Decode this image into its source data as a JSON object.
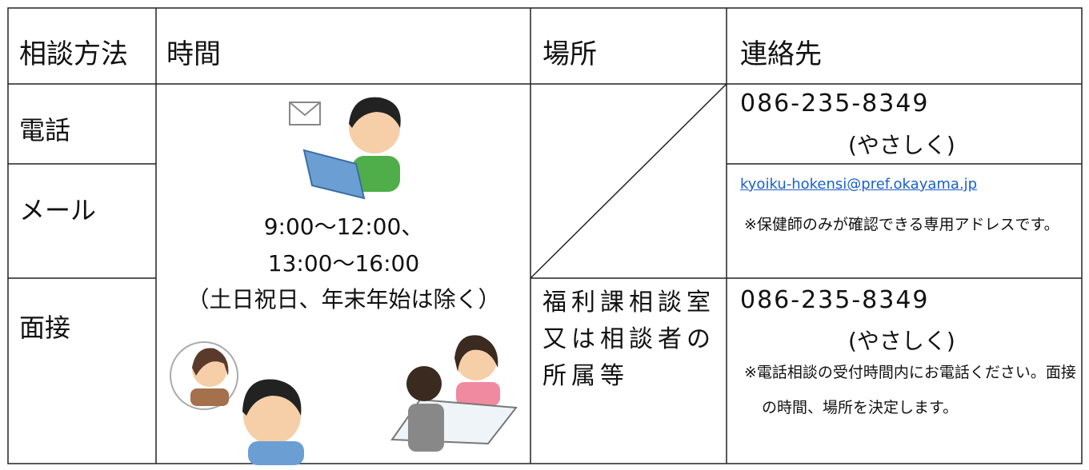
{
  "table": {
    "headers": [
      "相談方法",
      "時間",
      "場所",
      "連絡先"
    ],
    "methods": [
      "電話",
      "メール",
      "面接"
    ],
    "hours": [
      "9:00～12:00、",
      "13:00～16:00",
      "（土日祝日、年末年始は除く）"
    ],
    "place": [
      "福利課相談室",
      "又は相談者の",
      "所属等"
    ],
    "contacts": {
      "phone": {
        "number": "086-235-8349",
        "label": "(やさしく)"
      },
      "mail": {
        "address": "kyoiku-hokensi@pref.okayama.jp",
        "note": "※保健師のみが確認できる専用アドレスです。"
      },
      "interview": {
        "number": "086-235-8349",
        "label": "(やさしく)",
        "note": "※電話相談の受付時間内にお電話ください。面接の時間、場所を決定します。"
      }
    }
  }
}
